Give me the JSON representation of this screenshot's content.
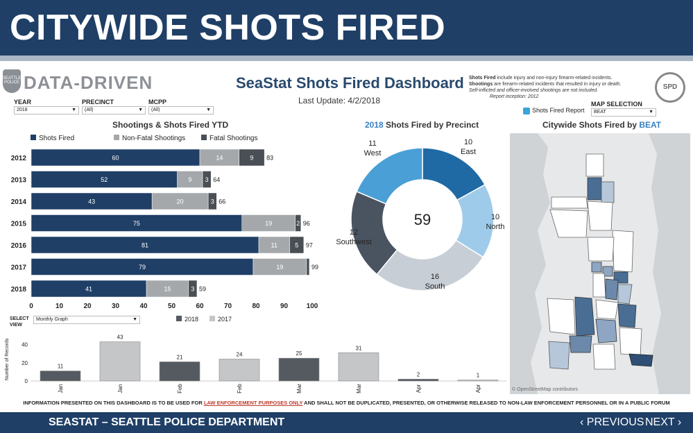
{
  "slide": {
    "title": "CITYWIDE SHOTS FIRED"
  },
  "header": {
    "logo_text": "DATA-DRIVEN",
    "badge_text": "SEATTLE POLICE",
    "dashboard_title": "SeaStat Shots Fired Dashboard",
    "last_update_label": "Last Update:",
    "last_update_value": "4/2/2018",
    "seal_text": "SPD"
  },
  "notes": {
    "line1_bold": "Shots Fired",
    "line1": " include injury and non-injury firearm-related incidents.",
    "line2_bold": "Shootings",
    "line2": " are firearm-related incidents that resulted in injury or death.",
    "line3": "Self-inflicted and officer-involved shootings are not included.",
    "line4": "Report inception: 2012"
  },
  "filters": {
    "year_label": "YEAR",
    "year_value": "2018",
    "precinct_label": "PRECINCT",
    "precinct_value": "(All)",
    "mcpp_label": "MCPP",
    "mcpp_value": "(All)",
    "map_selection_label": "MAP SELECTION",
    "map_selection_value": "BEAT",
    "shots_fired_report": "Shots Fired Report",
    "select_view_label": "SELECT VIEW",
    "select_view_value": "Monthly Graph"
  },
  "titles": {
    "ytd": "Shootings & Shots Fired YTD",
    "precinct_year": "2018",
    "precinct_rest": " Shots Fired by Precinct",
    "map_prefix": "Citywide Shots Fired by ",
    "map_hl": "BEAT"
  },
  "colors": {
    "navy": "#1f3f66",
    "gray": "#a5a8ab",
    "dark": "#4a4f55",
    "light_gray": "#c4c6c8"
  },
  "chart_data": [
    {
      "type": "bar",
      "orientation": "horizontal_stacked",
      "title": "Shootings & Shots Fired YTD",
      "categories": [
        "2012",
        "2013",
        "2014",
        "2015",
        "2016",
        "2017",
        "2018"
      ],
      "series": [
        {
          "name": "Shots Fired",
          "color": "#1f3f66",
          "values": [
            60,
            52,
            43,
            75,
            81,
            79,
            41
          ]
        },
        {
          "name": "Non-Fatal Shootings",
          "color": "#a5a8ab",
          "values": [
            14,
            9,
            20,
            19,
            11,
            19,
            15
          ]
        },
        {
          "name": "Fatal Shootings",
          "color": "#4a4f55",
          "values": [
            9,
            3,
            3,
            2,
            5,
            1,
            3
          ]
        }
      ],
      "totals": [
        83,
        64,
        66,
        96,
        97,
        99,
        59
      ],
      "segment_labels": [
        [
          "60",
          "14",
          "9"
        ],
        [
          "52",
          "9",
          "3"
        ],
        [
          "43",
          "20",
          "3"
        ],
        [
          "75",
          "19",
          "2"
        ],
        [
          "81",
          "11",
          "5"
        ],
        [
          "79",
          "19",
          ""
        ],
        [
          "41",
          "15",
          "3"
        ]
      ],
      "xticks": [
        "0",
        "10",
        "20",
        "30",
        "40",
        "50",
        "60",
        "70",
        "80",
        "90",
        "100"
      ],
      "xlim": [
        0,
        100
      ]
    },
    {
      "type": "pie",
      "donut": true,
      "title": "2018 Shots Fired by Precinct",
      "center_value": "59",
      "slices": [
        {
          "name": "East",
          "value": 10,
          "color": "#1f6aa5"
        },
        {
          "name": "North",
          "value": 10,
          "color": "#9fcbea"
        },
        {
          "name": "South",
          "value": 16,
          "color": "#c8ced6"
        },
        {
          "name": "Southwest",
          "value": 12,
          "color": "#4a5360"
        },
        {
          "name": "West",
          "value": 11,
          "color": "#4a9fd6"
        }
      ],
      "value_labels": [
        "10",
        "10",
        "16",
        "12",
        "11"
      ]
    },
    {
      "type": "bar",
      "title": "Monthly Graph",
      "ylabel": "Number of Records",
      "legend": [
        {
          "name": "2018",
          "color": "#555a61"
        },
        {
          "name": "2017",
          "color": "#c4c6c8"
        }
      ],
      "categories": [
        "Jan",
        "Jan",
        "Feb",
        "Feb",
        "Mar",
        "Mar",
        "Apr",
        "Apr"
      ],
      "series_of_bar": [
        "2018",
        "2017",
        "2018",
        "2017",
        "2018",
        "2017",
        "2018",
        "2017"
      ],
      "values": [
        11,
        43,
        21,
        24,
        25,
        31,
        2,
        1
      ],
      "value_labels": [
        "11",
        "43",
        "21",
        "24",
        "25",
        "31",
        "2",
        "1"
      ],
      "yticks": [
        "0",
        "20",
        "40"
      ],
      "ylim": [
        0,
        48
      ]
    }
  ],
  "map": {
    "credit": "© OpenStreetMap contributors"
  },
  "disclaimer": {
    "pre": "INFORMATION PRESENTED ON THIS DASHBOARD IS TO BE USED FOR ",
    "red": "LAW ENFORCEMENT PURPOSES ONLY",
    "post": " AND SHALL NOT BE DUPLICATED, PRESENTED, OR OTHERWISE RELEASED TO NON-LAW ENFORCEMENT PERSONNEL OR IN A PUBLIC FORUM"
  },
  "footer": {
    "label": "SEASTAT – SEATTLE POLICE DEPARTMENT",
    "prev": "‹ PREVIOUS",
    "next": "NEXT ›"
  }
}
